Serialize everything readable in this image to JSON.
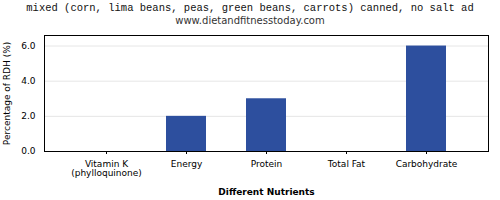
{
  "chart_data": {
    "type": "bar",
    "title": "mixed (corn, lima beans, peas, green beans, carrots) canned, no salt ad",
    "subtitle": "www.dietandfitnesstoday.com",
    "categories": [
      "Vitamin K (phylloquinone)",
      "Energy",
      "Protein",
      "Total Fat",
      "Carbohydrate"
    ],
    "values": [
      0.0,
      2.0,
      3.0,
      0.0,
      6.0
    ],
    "color": "#2d4f9e",
    "xlabel": "Different Nutrients",
    "ylabel": "Percentage of RDH (%)",
    "ylim": [
      0,
      6.6
    ],
    "yticks": [
      0,
      2,
      4,
      6
    ],
    "grid": true
  }
}
